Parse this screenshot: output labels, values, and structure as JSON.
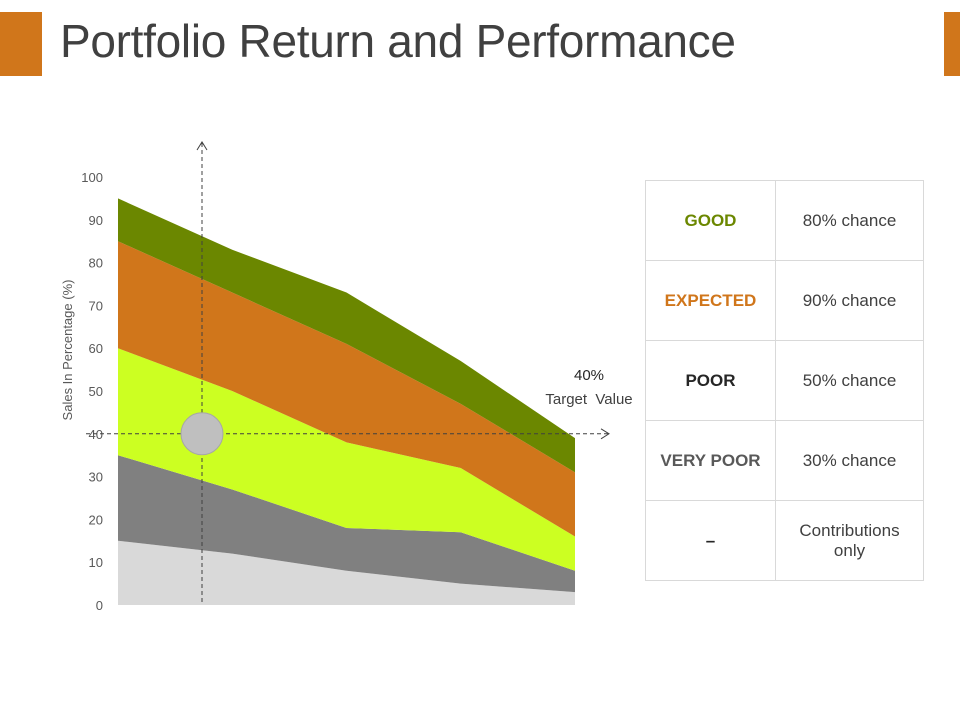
{
  "title": "Portfolio Return and Performance",
  "colors": {
    "accent": "#d0761b",
    "good": "#6b8700",
    "expected": "#d0761b",
    "poor": "#262626",
    "very_poor": "#595959",
    "dash": "#404040"
  },
  "chart_data": {
    "type": "area",
    "stacked": true,
    "ylabel": "Sales In Percentage (%)",
    "xlabel": "",
    "ylim": [
      0,
      100
    ],
    "yticks": [
      "0",
      "10",
      "20",
      "30",
      "40",
      "50",
      "60",
      "70",
      "80",
      "90",
      "100"
    ],
    "x": [
      0,
      1,
      2,
      3,
      4
    ],
    "series": [
      {
        "values": [
          15,
          12,
          8,
          5,
          3
        ],
        "color": "#d9d9d9"
      },
      {
        "values": [
          20,
          15,
          10,
          12,
          5
        ],
        "color": "#808080"
      },
      {
        "values": [
          25,
          23,
          20,
          15,
          8
        ],
        "color": "#ccff22"
      },
      {
        "values": [
          25,
          23,
          23,
          15,
          15
        ],
        "color": "#d0761b"
      },
      {
        "values": [
          10,
          10,
          12,
          10,
          8
        ],
        "color": "#6b8700"
      }
    ],
    "target": {
      "value": 40,
      "value_label": "40%",
      "label": "Target  Value"
    },
    "legend_table": [
      {
        "label": "GOOD",
        "chance": "80% chance",
        "color": "#6b8700"
      },
      {
        "label": "EXPECTED",
        "chance": "90% chance",
        "color": "#d0761b"
      },
      {
        "label": "POOR",
        "chance": "50% chance",
        "color": "#262626"
      },
      {
        "label": "VERY POOR",
        "chance": "30% chance",
        "color": "#595959"
      },
      {
        "label": "–",
        "chance": "Contributions only",
        "color": "#262626"
      }
    ]
  }
}
